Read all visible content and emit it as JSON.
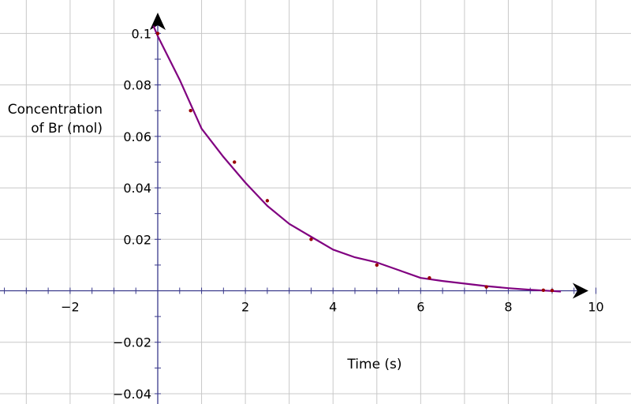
{
  "chart_data": {
    "type": "line",
    "title": "",
    "xlabel": "Time (s)",
    "ylabel_lines": [
      "Concentration",
      "of Br (mol)"
    ],
    "xlim": [
      -3.6,
      10.8
    ],
    "ylim": [
      -0.044,
      0.113
    ],
    "x_ticks": [
      {
        "value": -2,
        "label": "−2"
      },
      {
        "value": 2,
        "label": "2"
      },
      {
        "value": 4,
        "label": "4"
      },
      {
        "value": 6,
        "label": "6"
      },
      {
        "value": 8,
        "label": "8"
      },
      {
        "value": 10,
        "label": "10"
      }
    ],
    "y_ticks": [
      {
        "value": 0.1,
        "label": "0.1"
      },
      {
        "value": 0.08,
        "label": "0.08"
      },
      {
        "value": 0.06,
        "label": "0.06"
      },
      {
        "value": 0.04,
        "label": "0.04"
      },
      {
        "value": 0.02,
        "label": "0.02"
      },
      {
        "value": -0.02,
        "label": "−0.02"
      },
      {
        "value": -0.04,
        "label": "−0.04"
      }
    ],
    "grid": true,
    "series": [
      {
        "color": "#800080",
        "x": [
          -0.1,
          0,
          0.5,
          1,
          1.5,
          2,
          2.5,
          3,
          3.5,
          4,
          4.5,
          5,
          5.5,
          6,
          6.5,
          7,
          7.5,
          8,
          8.5,
          9,
          9.2
        ],
        "y": [
          0.103,
          0.099,
          0.082,
          0.063,
          0.052,
          0.042,
          0.033,
          0.026,
          0.021,
          0.016,
          0.013,
          0.011,
          0.008,
          0.005,
          0.0038,
          0.0028,
          0.0018,
          0.001,
          0.0004,
          -0.0001,
          -0.0003
        ]
      }
    ],
    "points": {
      "color": "#990000",
      "x": [
        0,
        0.75,
        1.75,
        2.5,
        3.5,
        5,
        6.2,
        7.5,
        8.8,
        9
      ],
      "y": [
        0.1,
        0.07,
        0.05,
        0.035,
        0.02,
        0.01,
        0.005,
        0.0015,
        0.0002,
        0.0001
      ]
    }
  }
}
